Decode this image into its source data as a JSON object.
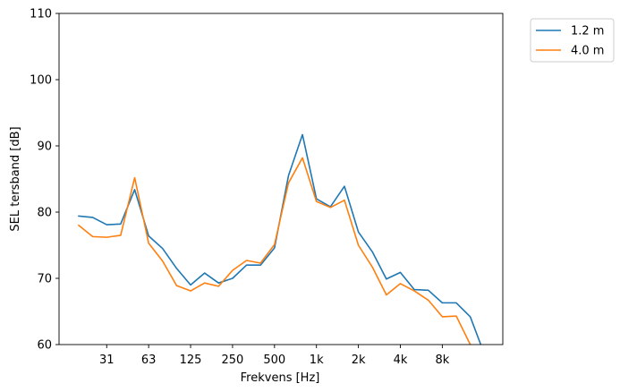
{
  "chart_data": {
    "type": "line",
    "xlabel": "Frekvens [Hz]",
    "ylabel": "SEL tersband [dB]",
    "ylim": [
      60,
      110
    ],
    "yticks": [
      60,
      70,
      80,
      90,
      100,
      110
    ],
    "x_ticks": [
      {
        "index": 2,
        "label": "31"
      },
      {
        "index": 5,
        "label": "63"
      },
      {
        "index": 8,
        "label": "125"
      },
      {
        "index": 11,
        "label": "250"
      },
      {
        "index": 14,
        "label": "500"
      },
      {
        "index": 17,
        "label": "1k"
      },
      {
        "index": 20,
        "label": "2k"
      },
      {
        "index": 23,
        "label": "4k"
      },
      {
        "index": 26,
        "label": "8k"
      }
    ],
    "x_index": [
      0,
      1,
      2,
      3,
      4,
      5,
      6,
      7,
      8,
      9,
      10,
      11,
      12,
      13,
      14,
      15,
      16,
      17,
      18,
      19,
      20,
      21,
      22,
      23,
      24,
      25,
      26,
      27,
      28,
      29
    ],
    "series": [
      {
        "name": "1.2 m",
        "color": "#1f77b4",
        "values": [
          79.4,
          79.2,
          78.1,
          78.2,
          83.4,
          76.4,
          74.5,
          71.5,
          69.0,
          70.8,
          69.3,
          70.0,
          72.0,
          72.0,
          74.6,
          85.5,
          91.7,
          82.0,
          80.8,
          83.9,
          77.0,
          74.0,
          69.9,
          70.9,
          68.3,
          68.2,
          66.3,
          66.3,
          64.2,
          58.6
        ]
      },
      {
        "name": "4.0 m",
        "color": "#ff7f0e",
        "values": [
          78.0,
          76.3,
          76.2,
          76.5,
          85.2,
          75.3,
          72.6,
          68.9,
          68.1,
          69.3,
          68.8,
          71.2,
          72.7,
          72.3,
          75.1,
          84.4,
          88.2,
          81.6,
          80.7,
          81.8,
          75.0,
          71.7,
          67.5,
          69.2,
          68.1,
          66.7,
          64.2,
          64.3,
          60.0,
          56.0
        ]
      }
    ],
    "legend_position": "outside-top-right",
    "grid": false
  }
}
